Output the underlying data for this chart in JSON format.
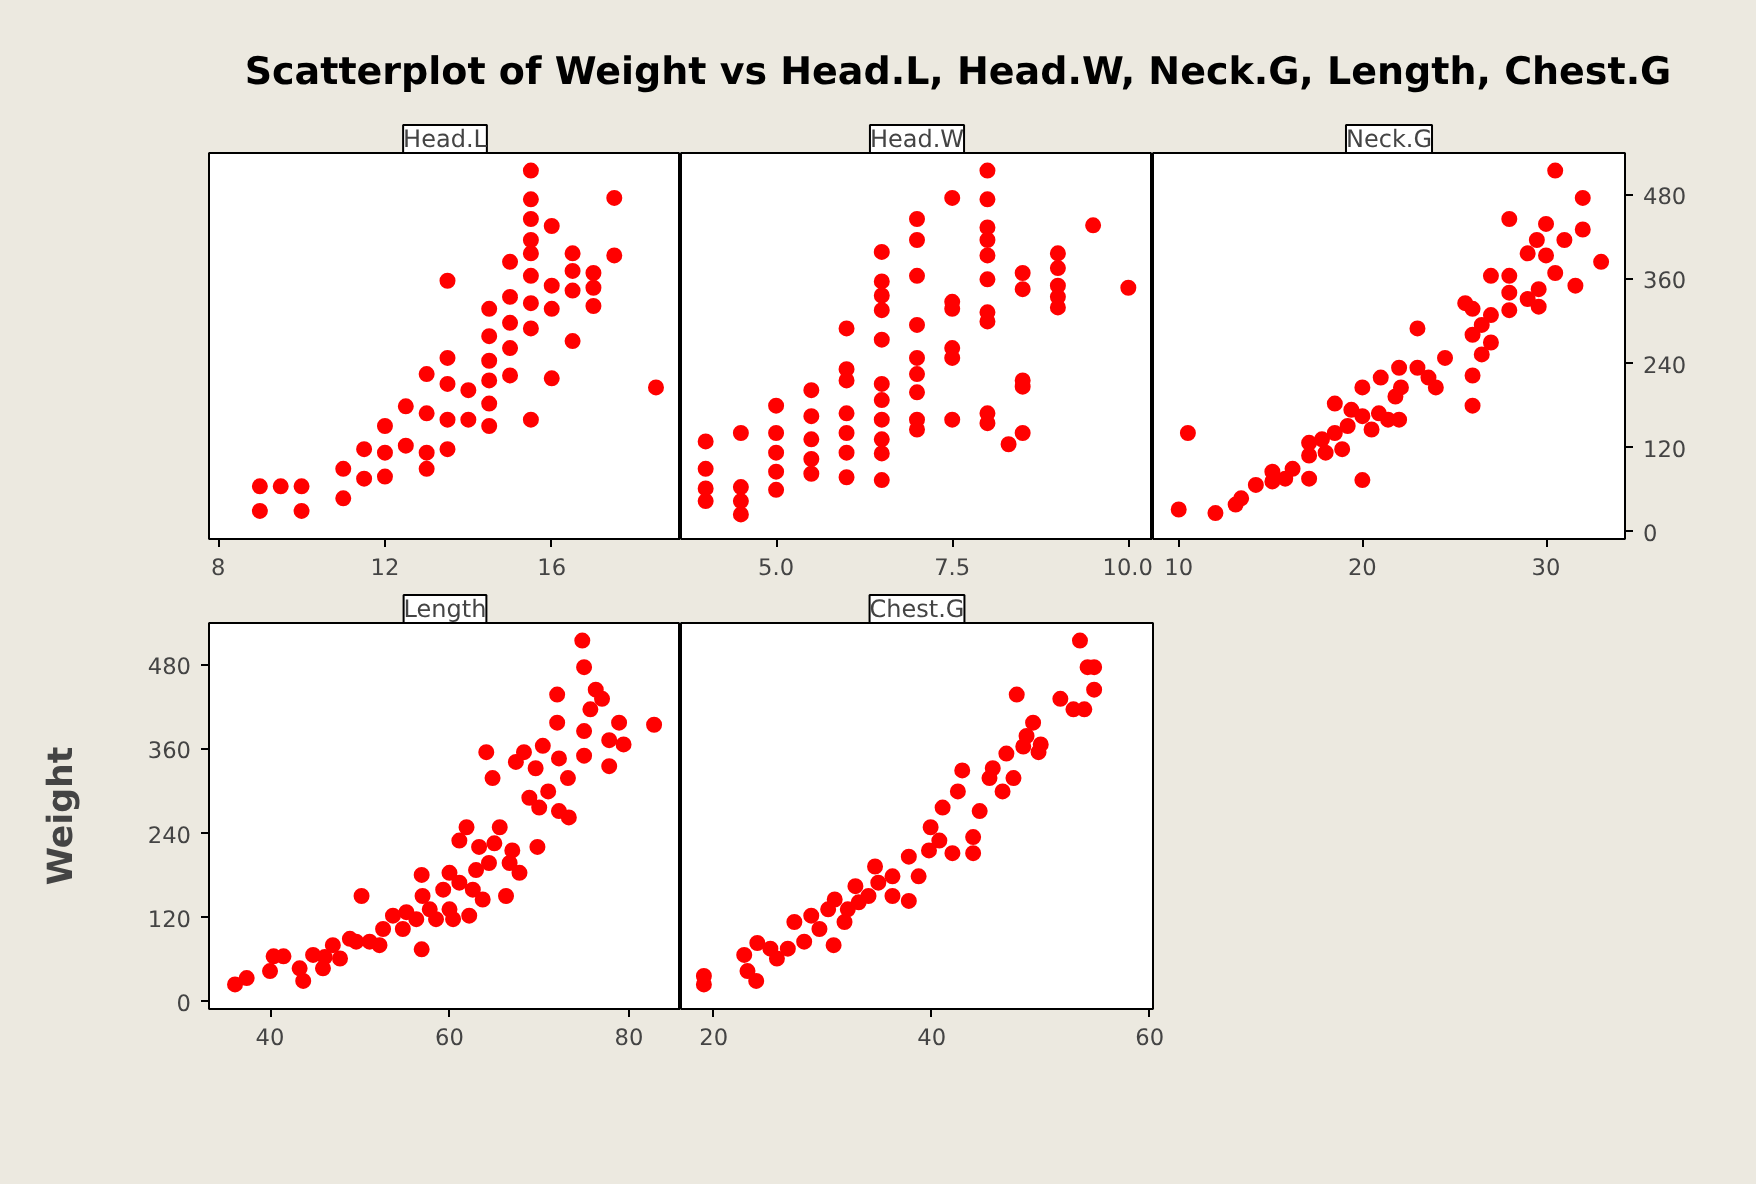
{
  "chart_data": [
    {
      "type": "scatter",
      "title": "Scatterplot of Weight vs Head.L, Head.W, Neck.G, Length, Chest.G",
      "xlabel": "Head.L",
      "marker": "circle",
      "tick_labels": "x",
      "xlim": [
        7.78,
        19.1
      ],
      "ylim": [
        -10,
        540
      ],
      "xticks": [
        8,
        12,
        16
      ],
      "x": [
        9,
        9,
        9.5,
        10,
        10,
        11,
        11,
        11.5,
        11.5,
        12,
        12,
        12,
        12.5,
        12.5,
        13,
        13,
        13,
        13,
        13.5,
        13.5,
        13.5,
        13.5,
        13.5,
        14,
        14,
        14.5,
        14.5,
        14.5,
        14.5,
        14.5,
        14.5,
        15,
        15,
        15,
        15,
        15,
        15.5,
        15.5,
        15.5,
        15.5,
        15.5,
        15.5,
        15.5,
        15.5,
        15.5,
        16,
        16,
        16,
        16,
        16.5,
        16.5,
        16.5,
        16.5,
        17,
        17,
        17,
        17.5,
        17.5,
        18.5
      ],
      "series": [
        {
          "color": "#ff0000",
          "values": [
            65,
            30,
            65,
            65,
            30,
            90,
            48,
            118,
            76,
            151,
            113,
            79,
            179,
            123,
            225,
            169,
            113,
            90,
            358,
            248,
            211,
            160,
            118,
            202,
            160,
            318,
            279,
            244,
            216,
            183,
            151,
            385,
            335,
            298,
            262,
            223,
            515,
            474,
            446,
            416,
            397,
            365,
            326,
            290,
            160,
            436,
            351,
            318,
            219,
            397,
            372,
            344,
            272,
            369,
            348,
            322,
            476,
            394,
            206
          ]
        }
      ]
    },
    {
      "type": "scatter",
      "xlabel": "Head.W",
      "marker": "circle",
      "tick_labels": "x",
      "xlim": [
        3.65,
        10.35
      ],
      "ylim": [
        -10,
        540
      ],
      "xticks": [
        {
          "value": 5,
          "label": "5.0"
        },
        {
          "value": 7.5,
          "label": "7.5"
        },
        {
          "value": 10,
          "label": "10.0"
        }
      ],
      "x": [
        4,
        4,
        4,
        4,
        4.5,
        4.5,
        4.5,
        4.5,
        5,
        5,
        5,
        5,
        5,
        5.5,
        5.5,
        5.5,
        5.5,
        5.5,
        6,
        6,
        6,
        6,
        6,
        6,
        6,
        6.5,
        6.5,
        6.5,
        6.5,
        6.5,
        6.5,
        6.5,
        6.5,
        6.5,
        6.5,
        6.5,
        7,
        7,
        7,
        7,
        7,
        7,
        7,
        7,
        7,
        7.5,
        7.5,
        7.5,
        7.5,
        7.5,
        7.5,
        8,
        8,
        8,
        8,
        8,
        8,
        8,
        8,
        8,
        8,
        8.3,
        8.5,
        8.5,
        8.5,
        8.5,
        8.5,
        9,
        9,
        9,
        9,
        9,
        9.5,
        10
      ],
      "series": [
        {
          "color": "#ff0000",
          "values": [
            129,
            90,
            62,
            44,
            141,
            64,
            44,
            25,
            180,
            141,
            113,
            86,
            60,
            202,
            165,
            132,
            104,
            83,
            290,
            232,
            216,
            169,
            141,
            113,
            78,
            399,
            357,
            337,
            316,
            274,
            211,
            188,
            160,
            132,
            112,
            74,
            446,
            416,
            365,
            295,
            248,
            225,
            199,
            160,
            146,
            476,
            328,
            318,
            262,
            248,
            160,
            515,
            474,
            434,
            416,
            394,
            360,
            313,
            300,
            169,
            155,
            125,
            369,
            346,
            216,
            207,
            141,
            397,
            376,
            351,
            335,
            320,
            437,
            348
          ]
        }
      ]
    },
    {
      "type": "scatter",
      "xlabel": "Neck.G",
      "marker": "circle",
      "xlim": [
        8.6,
        34.3
      ],
      "ylim": [
        -10,
        540
      ],
      "xticks": [
        10,
        20,
        30
      ],
      "yticks": [
        0,
        120,
        240,
        360,
        480
      ],
      "x": [
        10,
        10.5,
        12,
        13.1,
        13.4,
        14.2,
        15.1,
        15.1,
        15.8,
        16.2,
        17.1,
        17.1,
        17.1,
        17.8,
        18,
        18.5,
        18.5,
        18.9,
        19.2,
        19.4,
        20,
        20,
        20,
        20.5,
        20.9,
        21,
        21.4,
        21.8,
        22,
        22,
        22.1,
        23,
        23,
        23.6,
        24,
        24.5,
        25.6,
        26,
        26,
        26,
        26,
        26.5,
        26.5,
        27,
        27,
        27,
        28,
        28,
        28,
        28,
        29,
        29,
        29.5,
        29.6,
        29.6,
        30,
        30,
        30.5,
        30.5,
        31,
        31.6,
        32,
        32,
        33
      ],
      "series": [
        {
          "color": "#ff0000",
          "values": [
            32,
            141,
            27,
            39,
            48,
            67,
            72,
            86,
            76,
            90,
            76,
            109,
            127,
            132,
            113,
            141,
            183,
            118,
            151,
            174,
            165,
            206,
            74,
            146,
            169,
            220,
            160,
            193,
            160,
            234,
            206,
            290,
            234,
            220,
            206,
            248,
            326,
            318,
            281,
            223,
            180,
            295,
            253,
            365,
            309,
            270,
            446,
            365,
            341,
            316,
            332,
            397,
            416,
            346,
            321,
            439,
            394,
            369,
            515,
            416,
            351,
            476,
            431,
            385
          ]
        }
      ]
    },
    {
      "type": "scatter",
      "xlabel": "Length",
      "ylabel": "Weight",
      "marker": "circle",
      "xlim": [
        33.2,
        85.8
      ],
      "ylim": [
        -10,
        540
      ],
      "xticks": [
        40,
        60,
        80
      ],
      "yticks": [
        0,
        120,
        240,
        360,
        480
      ],
      "x": [
        36.1,
        37.4,
        40,
        40.4,
        41.5,
        43.3,
        43.7,
        44.8,
        45.9,
        46.1,
        47,
        47.8,
        48.9,
        50.2,
        49.6,
        51.1,
        52.2,
        52.6,
        53.7,
        54.8,
        55.2,
        56.3,
        56.9,
        56.9,
        57,
        57.8,
        58.5,
        59.3,
        60,
        60,
        60.4,
        61.1,
        61.1,
        61.9,
        62.2,
        62.6,
        62.96,
        63.3,
        63.7,
        64.1,
        64.4,
        64.8,
        65,
        65.6,
        66.3,
        66.7,
        67,
        67.4,
        67.8,
        68.3,
        68.9,
        69.6,
        69.8,
        70,
        70.4,
        71,
        72,
        72,
        72.2,
        72.2,
        73.2,
        73.3,
        74.8,
        75,
        75,
        75,
        75.7,
        76.3,
        77,
        77.8,
        77.8,
        78.9,
        79.4,
        82.8
      ],
      "series": [
        {
          "color": "#ff0000",
          "values": [
            25,
            34,
            44,
            65,
            65,
            48,
            30,
            67,
            48,
            64,
            81,
            62,
            90,
            151,
            86,
            86,
            81,
            104,
            123,
            104,
            128,
            118,
            181,
            75,
            151,
            132,
            118,
            160,
            184,
            132,
            118,
            170,
            230,
            249,
            123,
            160,
            188,
            221,
            146,
            356,
            198,
            319,
            226,
            249,
            151,
            198,
            216,
            342,
            184,
            356,
            291,
            333,
            221,
            277,
            365,
            300,
            438,
            398,
            347,
            272,
            319,
            263,
            515,
            477,
            386,
            351,
            417,
            445,
            432,
            373,
            336,
            398,
            367,
            395
          ]
        }
      ]
    },
    {
      "type": "scatter",
      "xlabel": "Chest.G",
      "marker": "circle",
      "tick_labels": "x",
      "xlim": [
        17,
        60.3
      ],
      "ylim": [
        -10,
        540
      ],
      "xticks": [
        20,
        40,
        60
      ],
      "x": [
        19.1,
        19.1,
        22.8,
        23.1,
        23.9,
        24,
        25.2,
        25.8,
        26.8,
        27.4,
        28.3,
        28.95,
        29.7,
        30.5,
        31,
        31.1,
        32,
        32.3,
        33,
        33.3,
        34.2,
        34.8,
        35.1,
        36.4,
        36.4,
        37.9,
        37.9,
        38.8,
        39.75,
        39.9,
        40.7,
        41,
        41.9,
        42.4,
        42.8,
        43.8,
        43.8,
        44.4,
        44.9,
        45.3,
        45.6,
        46.5,
        46.85,
        47.5,
        47.8,
        48.4,
        48.7,
        49.3,
        49.8,
        50,
        51.8,
        53,
        53.6,
        54,
        54.3,
        54.9,
        54.9
      ],
      "series": [
        {
          "color": "#ff0000",
          "values": [
            37,
            25,
            67,
            44,
            30,
            84,
            76,
            62,
            76,
            114,
            86,
            123,
            104,
            132,
            81,
            146,
            114,
            132,
            165,
            142,
            151,
            193,
            170,
            179,
            151,
            144,
            207,
            179,
            216,
            249,
            230,
            277,
            212,
            300,
            330,
            235,
            212,
            272,
            null,
            319,
            333,
            300,
            354,
            319,
            438,
            364,
            379,
            398,
            356,
            367,
            432,
            417,
            515,
            417,
            477,
            477,
            445
          ]
        }
      ]
    }
  ]
}
